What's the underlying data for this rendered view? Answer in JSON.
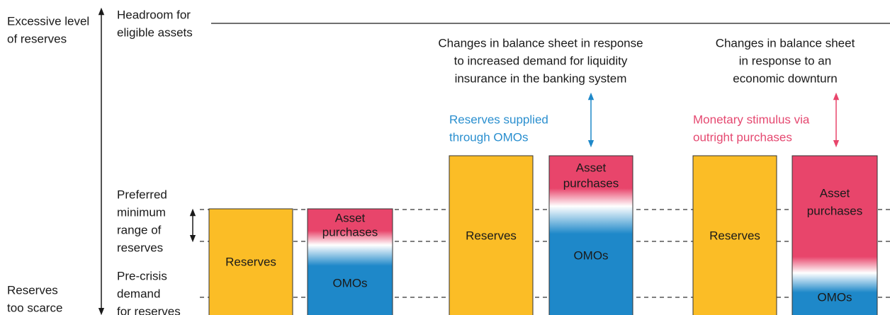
{
  "axis": {
    "top_label": [
      "Excessive level",
      "of reserves"
    ],
    "bottom_label": [
      "Reserves",
      "too scarce"
    ]
  },
  "headroom_label": [
    "Headroom for",
    "eligible assets"
  ],
  "preferred_range_label": [
    "Preferred",
    "minimum",
    "range of",
    "reserves"
  ],
  "pre_crisis_label": [
    "Pre-crisis",
    "demand",
    "for reserves"
  ],
  "panels": [
    {
      "reserves": "Reserves",
      "asset_purchases": [
        "Asset",
        "purchases"
      ],
      "omos": "OMOs"
    },
    {
      "heading": [
        "Changes in balance sheet in response",
        "to increased demand for liquidity",
        "insurance in the banking system"
      ],
      "note": [
        "Reserves supplied",
        "through OMOs"
      ],
      "reserves": "Reserves",
      "asset_purchases": [
        "Asset",
        "purchases"
      ],
      "omos": "OMOs"
    },
    {
      "heading": [
        "Changes in balance sheet",
        "in response to an",
        "economic downturn"
      ],
      "note": [
        "Monetary stimulus via",
        "outright purchases"
      ],
      "reserves": "Reserves",
      "asset_purchases": [
        "Asset",
        "purchases"
      ],
      "omos": "OMOs"
    }
  ]
}
